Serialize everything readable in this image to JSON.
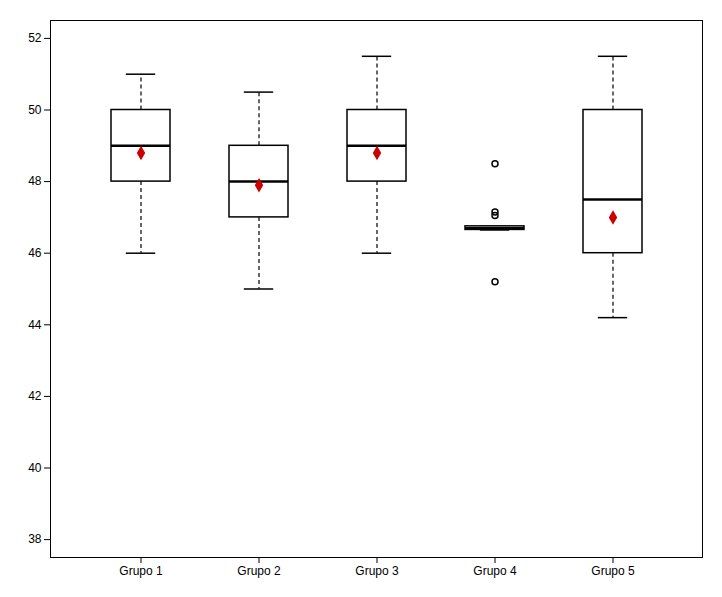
{
  "chart_data": {
    "type": "box",
    "categories": [
      "Grupo 1",
      "Grupo 2",
      "Grupo 3",
      "Grupo 4",
      "Grupo 5"
    ],
    "boxes": [
      {
        "q1": 48.0,
        "median": 49.0,
        "q3": 50.0,
        "whisker_low": 46.0,
        "whisker_high": 51.0,
        "mean": 48.8,
        "outliers": []
      },
      {
        "q1": 47.0,
        "median": 48.0,
        "q3": 49.0,
        "whisker_low": 45.0,
        "whisker_high": 50.5,
        "mean": 47.9,
        "outliers": []
      },
      {
        "q1": 48.0,
        "median": 49.0,
        "q3": 50.0,
        "whisker_low": 46.0,
        "whisker_high": 51.5,
        "mean": 48.8,
        "outliers": []
      },
      {
        "q1": 46.65,
        "median": 46.7,
        "q3": 46.75,
        "whisker_low": 46.65,
        "whisker_high": 46.75,
        "mean": null,
        "outliers": [
          47.05,
          47.15,
          48.5,
          45.2
        ]
      },
      {
        "q1": 46.0,
        "median": 47.5,
        "q3": 50.0,
        "whisker_low": 44.2,
        "whisker_high": 51.5,
        "mean": 47.0,
        "outliers": []
      }
    ],
    "ylim": [
      37.5,
      52.5
    ],
    "yticks": [
      38,
      40,
      42,
      44,
      46,
      48,
      50,
      52
    ],
    "color": "#cc0000",
    "grid": false
  }
}
